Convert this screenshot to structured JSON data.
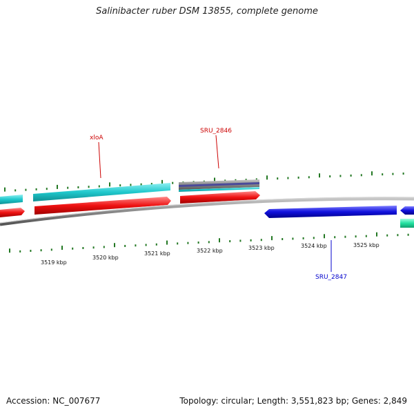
{
  "title": "Salinibacter ruber DSM 13855, complete genome",
  "footer": {
    "accession": "Accession: NC_007677",
    "summary": "Topology: circular; Length: 3,551,823 bp; Genes: 2,849"
  },
  "scale_labels": [
    "3519 kbp",
    "3520 kbp",
    "3521 kbp",
    "3522 kbp",
    "3523 kbp",
    "3524 kbp",
    "3525 kbp"
  ],
  "gene_labels": [
    {
      "text": "xloA",
      "color": "#cc0000"
    },
    {
      "text": "SRU_2846",
      "color": "#cc0000"
    },
    {
      "text": "SRU_2847",
      "color": "#0000cc"
    }
  ],
  "colors": {
    "cyan": "#1fc8cc",
    "red": "#ee1111",
    "blue": "#1111dd",
    "green": "#22e0a0",
    "backbone": "#8a8a8a",
    "tick": "#227722"
  }
}
